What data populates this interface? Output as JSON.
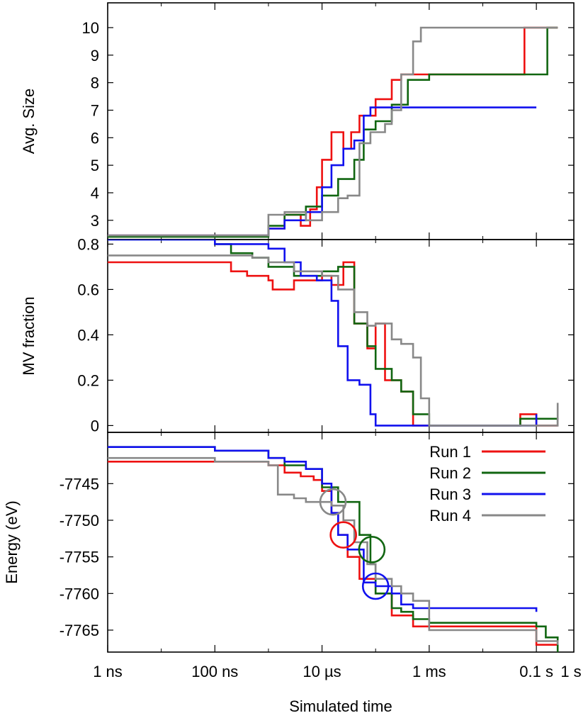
{
  "chart_data": {
    "type": "line",
    "xlabel": "Simulated time",
    "x_scale": "log",
    "x_unit": "s",
    "xlim": [
      1e-09,
      0.5
    ],
    "x_ticks": [
      {
        "value": 1e-09,
        "label": "1 ns"
      },
      {
        "value": 1e-07,
        "label": "100 ns"
      },
      {
        "value": 1e-05,
        "label": "10 µs"
      },
      {
        "value": 0.001,
        "label": "1 ms"
      },
      {
        "value": 0.1,
        "label": "0.1 s"
      },
      {
        "value": 1,
        "label": "1 s"
      }
    ],
    "legend": {
      "placement": "top-right of bottom panel"
    },
    "series_styles": [
      {
        "name": "Run 1",
        "color": "#ee1111"
      },
      {
        "name": "Run 2",
        "color": "#116611"
      },
      {
        "name": "Run 3",
        "color": "#1111ee"
      },
      {
        "name": "Run 4",
        "color": "#888888"
      }
    ],
    "panels": [
      {
        "ylabel": "Avg. Size",
        "ylim": [
          2.3,
          10.9
        ],
        "yticks": [
          3,
          4,
          5,
          6,
          7,
          8,
          9,
          10
        ],
        "series": [
          {
            "name": "Run 1",
            "x": [
              1e-09,
              1e-07,
              1e-06,
              2e-06,
              4e-06,
              6e-06,
              8e-06,
              1e-05,
              1.5e-05,
              2.5e-05,
              3.5e-05,
              5e-05,
              0.0001,
              0.0002,
              0.0003,
              0.0005,
              0.001,
              0.01,
              0.05,
              0.06,
              0.25
            ],
            "y": [
              2.45,
              2.45,
              2.7,
              3.2,
              2.8,
              3.4,
              4.2,
              5.2,
              6.2,
              5.6,
              6.2,
              6.8,
              7.4,
              8.1,
              8.3,
              8.3,
              8.3,
              8.3,
              8.3,
              10,
              10
            ]
          },
          {
            "name": "Run 2",
            "x": [
              1e-09,
              1e-07,
              1e-06,
              2e-06,
              5e-06,
              1e-05,
              2e-05,
              4e-05,
              6e-05,
              0.0001,
              0.0002,
              0.0004,
              0.001,
              0.01,
              0.15,
              0.16,
              0.25
            ],
            "y": [
              2.4,
              2.4,
              2.8,
              3.2,
              3.5,
              3.9,
              4.5,
              5.2,
              6.3,
              6.6,
              7.2,
              8.1,
              8.3,
              8.3,
              8.3,
              10,
              10
            ]
          },
          {
            "name": "Run 3",
            "x": [
              1e-09,
              1e-07,
              1e-06,
              2e-06,
              5e-06,
              1e-05,
              1.5e-05,
              2.5e-05,
              4e-05,
              6e-05,
              8e-05,
              0.0001,
              0.001,
              0.01,
              0.1
            ],
            "y": [
              2.45,
              2.45,
              2.7,
              3.0,
              3.3,
              4.2,
              5.0,
              5.6,
              5.9,
              6.8,
              7.1,
              7.1,
              7.1,
              7.1,
              7.1
            ]
          },
          {
            "name": "Run 4",
            "x": [
              1e-09,
              1e-07,
              1e-06,
              2e-06,
              5e-06,
              1e-05,
              2e-05,
              3e-05,
              5e-05,
              8e-05,
              0.00015,
              0.0002,
              0.0003,
              0.0005,
              0.0007,
              0.001,
              0.01,
              0.1,
              0.25
            ],
            "y": [
              2.45,
              2.45,
              3.2,
              3.3,
              3.0,
              3.3,
              3.8,
              3.9,
              5.8,
              6.2,
              6.5,
              7.0,
              8.3,
              9.5,
              10,
              10,
              10,
              10,
              10
            ]
          }
        ]
      },
      {
        "ylabel": "MV fraction",
        "ylim": [
          -0.03,
          0.82
        ],
        "yticks": [
          0,
          0.2,
          0.4,
          0.6,
          0.8
        ],
        "series": [
          {
            "name": "Run 1",
            "x": [
              1e-09,
              1e-07,
              2e-07,
              4e-07,
              1e-06,
              1.2e-06,
              3e-06,
              1e-05,
              1.5e-05,
              2.5e-05,
              4e-05,
              7e-05,
              0.0001,
              0.00015,
              0.0003,
              0.0005,
              0.001,
              0.01,
              0.05,
              0.1,
              0.25
            ],
            "y": [
              0.72,
              0.72,
              0.68,
              0.66,
              0.64,
              0.6,
              0.64,
              0.66,
              0.62,
              0.72,
              0.45,
              0.34,
              0.45,
              0.2,
              0.15,
              0,
              0,
              0,
              0.05,
              0,
              0
            ]
          },
          {
            "name": "Run 2",
            "x": [
              1e-09,
              5e-08,
              1e-07,
              2e-07,
              5e-07,
              1e-06,
              3e-06,
              1e-05,
              2e-05,
              4e-05,
              7e-05,
              0.0001,
              0.0002,
              0.0003,
              0.0005,
              0.001,
              0.01,
              0.05,
              0.25
            ],
            "y": [
              0.82,
              0.82,
              0.8,
              0.76,
              0.74,
              0.7,
              0.66,
              0.68,
              0.7,
              0.45,
              0.35,
              0.25,
              0.2,
              0.15,
              0.05,
              0,
              0,
              0.03,
              0
            ]
          },
          {
            "name": "Run 3",
            "x": [
              1e-09,
              1e-07,
              5e-07,
              1e-06,
              2e-06,
              4e-06,
              8e-06,
              1.5e-05,
              2e-05,
              3e-05,
              5e-05,
              8e-05,
              0.0001,
              0.0002,
              0.0005,
              0.001,
              0.01,
              0.1
            ],
            "y": [
              0.82,
              0.8,
              0.8,
              0.78,
              0.72,
              0.66,
              0.64,
              0.55,
              0.35,
              0.2,
              0.18,
              0.05,
              0,
              0,
              0,
              0,
              0,
              0.05
            ]
          },
          {
            "name": "Run 4",
            "x": [
              1e-09,
              1e-07,
              5e-07,
              1e-06,
              3e-06,
              1e-05,
              2e-05,
              4e-05,
              7e-05,
              0.0001,
              0.0002,
              0.0003,
              0.0005,
              0.0007,
              0.001,
              0.01,
              0.1,
              0.25
            ],
            "y": [
              0.75,
              0.75,
              0.74,
              0.72,
              0.68,
              0.66,
              0.6,
              0.5,
              0.44,
              0.45,
              0.38,
              0.36,
              0.3,
              0.12,
              0,
              0,
              0,
              0.1
            ]
          }
        ]
      },
      {
        "ylabel": "Energy (eV)",
        "ylim": [
          -7768,
          -7738
        ],
        "yticks": [
          -7745,
          -7750,
          -7755,
          -7760,
          -7765
        ],
        "series": [
          {
            "name": "Run 1",
            "x": [
              1e-09,
              1e-07,
              1e-06,
              2e-06,
              4e-06,
              7e-06,
              1e-05,
              1.5e-05,
              2e-05,
              3e-05,
              5e-05,
              0.0001,
              0.0002,
              0.0005,
              0.001,
              0.01,
              0.05,
              0.1,
              0.25
            ],
            "y": [
              -7742,
              -7742,
              -7742.5,
              -7743.5,
              -7744,
              -7744.5,
              -7746,
              -7749,
              -7752,
              -7755,
              -7758,
              -7760,
              -7763,
              -7764.5,
              -7764.5,
              -7764.5,
              -7764.5,
              -7767,
              -7767
            ]
          },
          {
            "name": "Run 2",
            "x": [
              1e-09,
              1e-07,
              1e-06,
              2e-06,
              5e-06,
              1e-05,
              2e-05,
              5e-05,
              8e-05,
              0.0001,
              0.0002,
              0.0003,
              0.0005,
              0.001,
              0.01,
              0.1,
              0.15,
              0.25
            ],
            "y": [
              -7740,
              -7740.5,
              -7741.5,
              -7742.5,
              -7743,
              -7745.5,
              -7747.5,
              -7752,
              -7756,
              -7760,
              -7762,
              -7762.5,
              -7763.5,
              -7764,
              -7764,
              -7764.5,
              -7766,
              -7768
            ]
          },
          {
            "name": "Run 3",
            "x": [
              1e-09,
              1e-07,
              1e-06,
              2e-06,
              5e-06,
              1e-05,
              1.5e-05,
              2e-05,
              3e-05,
              6e-05,
              0.0001,
              0.0002,
              0.0003,
              0.0005,
              0.001,
              0.01,
              0.1
            ],
            "y": [
              -7740,
              -7740.5,
              -7741.5,
              -7742,
              -7743,
              -7745,
              -7749,
              -7752,
              -7754,
              -7758.5,
              -7759,
              -7760,
              -7761.5,
              -7762,
              -7762,
              -7762,
              -7762.5
            ]
          },
          {
            "name": "Run 4",
            "x": [
              1e-09,
              1e-07,
              1e-06,
              1.5e-06,
              3e-06,
              5e-06,
              1e-05,
              1.5e-05,
              2.5e-05,
              4e-05,
              7e-05,
              0.0001,
              0.0002,
              0.0003,
              0.0005,
              0.001,
              0.01,
              0.1,
              0.25
            ],
            "y": [
              -7741.5,
              -7742,
              -7742.5,
              -7746.5,
              -7747,
              -7747.5,
              -7747.5,
              -7748,
              -7750,
              -7753,
              -7756,
              -7758,
              -7759,
              -7760,
              -7761,
              -7765,
              -7765,
              -7766.5,
              -7767
            ]
          }
        ],
        "circles": [
          {
            "series": "Run 1",
            "x": 2.5e-05,
            "y": -7752
          },
          {
            "series": "Run 2",
            "x": 8.5e-05,
            "y": -7754
          },
          {
            "series": "Run 3",
            "x": 0.0001,
            "y": -7759
          },
          {
            "series": "Run 4",
            "x": 1.6e-05,
            "y": -7747.5
          }
        ]
      }
    ]
  }
}
